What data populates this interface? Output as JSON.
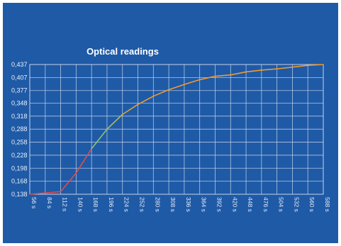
{
  "chart_data": {
    "type": "line",
    "title": "Optical readings",
    "xlabel": "",
    "ylabel": "",
    "x_unit": "s",
    "x": [
      56,
      84,
      112,
      140,
      168,
      196,
      224,
      252,
      280,
      308,
      336,
      364,
      392,
      420,
      448,
      476,
      504,
      532,
      560,
      588
    ],
    "x_tick_labels": [
      "56 s",
      "84 s",
      "112 s",
      "140 s",
      "168 s",
      "196 s",
      "224 s",
      "252 s",
      "280 s",
      "308 s",
      "336 s",
      "364 s",
      "392 s",
      "420 s",
      "448 s",
      "476 s",
      "504 s",
      "532 s",
      "560 s",
      "588 s"
    ],
    "y_tick_labels": [
      "0,138",
      "0,168",
      "0,198",
      "0,228",
      "0,258",
      "0,288",
      "0,318",
      "0,348",
      "0,377",
      "0,407",
      "0,437"
    ],
    "y_ticks": [
      0.138,
      0.168,
      0.198,
      0.228,
      0.258,
      0.288,
      0.318,
      0.348,
      0.377,
      0.407,
      0.437
    ],
    "ylim": [
      0.138,
      0.437
    ],
    "xlim": [
      56,
      588
    ],
    "grid": true,
    "series": [
      {
        "values": [
          0.138,
          0.141,
          0.144,
          0.187,
          0.243,
          0.288,
          0.322,
          0.345,
          0.364,
          0.379,
          0.391,
          0.402,
          0.41,
          0.413,
          0.42,
          0.424,
          0.427,
          0.431,
          0.435,
          0.437
        ]
      }
    ],
    "colors": {
      "background": "#1f5aa6",
      "grid": "#c9d8ee",
      "line_low": "#e24a4a",
      "line_mid": "#7cd37a",
      "line_high": "#f29a2e"
    }
  }
}
